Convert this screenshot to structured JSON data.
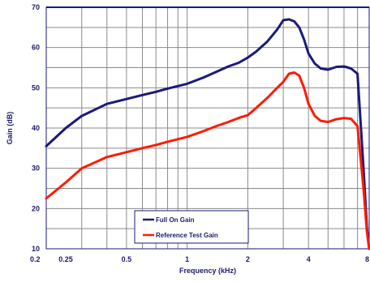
{
  "chart_data": {
    "type": "line",
    "title": "",
    "xlabel": "Frequency (kHz)",
    "ylabel": "Gain (dB)",
    "xscale": "log",
    "xlim": [
      0.2,
      8
    ],
    "ylim": [
      10,
      70
    ],
    "grid": true,
    "legend_position": "bottom-center",
    "x_tick_values": [
      0.2,
      0.25,
      0.5,
      1,
      2,
      4,
      8
    ],
    "x_tick_labels": [
      "0.2",
      "0.25",
      "0.5",
      "1",
      "2",
      "4",
      "8"
    ],
    "y_tick_values": [
      10,
      20,
      30,
      40,
      50,
      60,
      70
    ],
    "y_tick_labels": [
      "10",
      "20",
      "30",
      "40",
      "50",
      "60",
      "70"
    ],
    "series": [
      {
        "name": "Full On Gain",
        "color": "#1a1a7a",
        "x": [
          0.2,
          0.25,
          0.3,
          0.4,
          0.5,
          0.6,
          0.7,
          0.8,
          1.0,
          1.2,
          1.4,
          1.6,
          1.8,
          2.0,
          2.2,
          2.5,
          2.8,
          3.0,
          3.2,
          3.4,
          3.6,
          3.8,
          4.0,
          4.3,
          4.6,
          5.0,
          5.5,
          6.0,
          6.5,
          7.0,
          7.5,
          7.8,
          8.0
        ],
        "values": [
          35.5,
          40,
          43,
          46,
          47.2,
          48.2,
          49,
          49.8,
          51,
          52.5,
          54,
          55.3,
          56.2,
          57.5,
          59,
          61.5,
          64.5,
          66.8,
          67,
          66.5,
          65,
          62,
          58.5,
          56,
          54.8,
          54.5,
          55.2,
          55.3,
          54.8,
          53.5,
          30,
          15,
          10
        ]
      },
      {
        "name": "Reference Test Gain",
        "color": "#ff1a00",
        "x": [
          0.2,
          0.25,
          0.3,
          0.4,
          0.5,
          0.6,
          0.7,
          0.8,
          1.0,
          1.2,
          1.4,
          1.6,
          1.8,
          2.0,
          2.2,
          2.5,
          2.8,
          3.0,
          3.2,
          3.4,
          3.6,
          3.8,
          4.0,
          4.3,
          4.6,
          5.0,
          5.5,
          6.0,
          6.5,
          7.0,
          7.5,
          7.8,
          8.0
        ],
        "values": [
          22.5,
          26.5,
          30,
          32.8,
          34,
          35,
          35.8,
          36.6,
          37.8,
          39.2,
          40.5,
          41.5,
          42.5,
          43.2,
          45,
          47.5,
          50,
          51.5,
          53.5,
          53.8,
          53,
          50,
          46,
          43,
          41.8,
          41.5,
          42.2,
          42.5,
          42.3,
          40.5,
          25,
          14,
          10
        ]
      }
    ]
  }
}
